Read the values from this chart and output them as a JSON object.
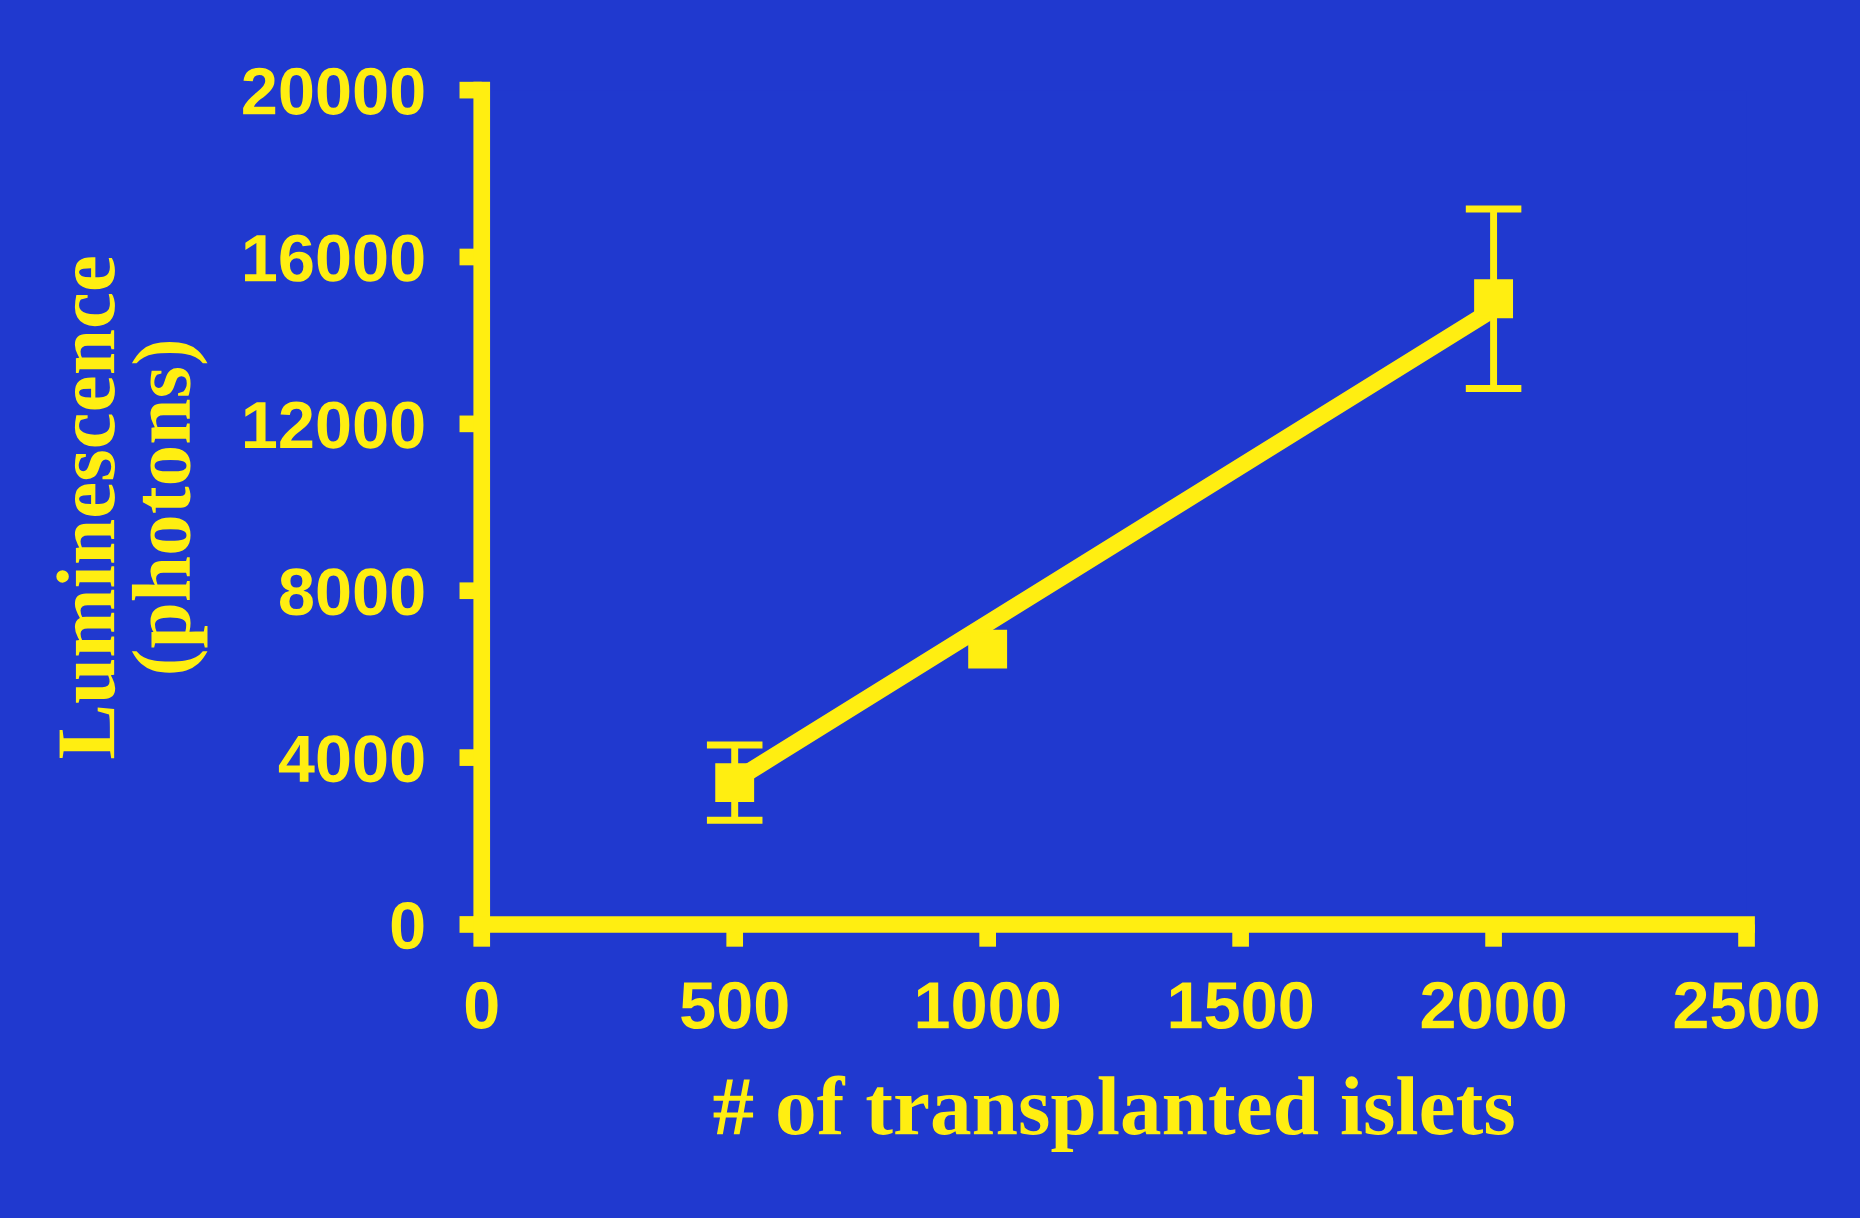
{
  "chart_data": {
    "type": "scatter",
    "xlabel": "# of transplanted islets",
    "ylabel": "Luminescence\n(photons)",
    "xlim": [
      0,
      2500
    ],
    "xticks": [
      0,
      500,
      1000,
      1500,
      2000,
      2500
    ],
    "ylim": [
      0,
      20000
    ],
    "yticks": [
      0,
      4000,
      8000,
      12000,
      16000,
      20000
    ],
    "grid": false,
    "legend": false,
    "series": [
      {
        "color": "#ffee11",
        "marker": "square",
        "x": [
          500,
          1000,
          2000
        ],
        "values": [
          3400,
          6600,
          15000
        ],
        "errors": [
          900,
          null,
          2150
        ]
      },
      {
        "type": "line",
        "color": "#ffee11",
        "x": [
          500,
          2000
        ],
        "values": [
          3450,
          14750
        ],
        "marker": "none",
        "line_style": "solid"
      }
    ]
  }
}
